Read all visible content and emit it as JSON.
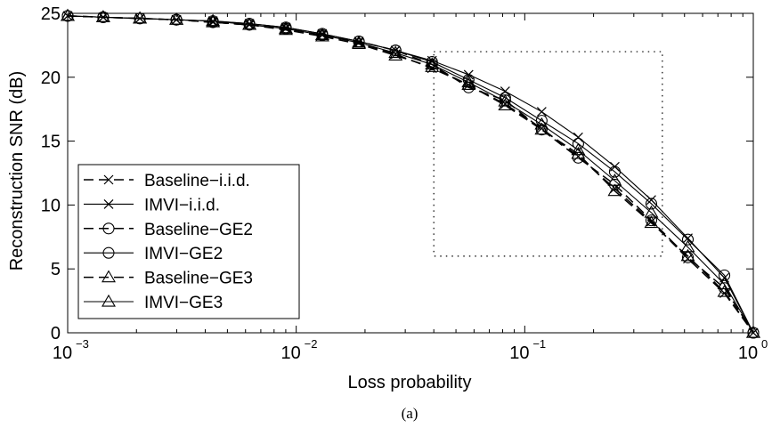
{
  "chart_data": {
    "type": "line",
    "xlabel": "Loss probability",
    "ylabel": "Reconstruction SNR (dB)",
    "caption": "(a)",
    "x_scale": "log",
    "xlim": [
      0.001,
      1
    ],
    "ylim": [
      0,
      25
    ],
    "x_ticks": [
      {
        "base": "10",
        "exp": "−3",
        "value": 0.001
      },
      {
        "base": "10",
        "exp": "−2",
        "value": 0.01
      },
      {
        "base": "10",
        "exp": "−1",
        "value": 0.1
      },
      {
        "base": "10",
        "exp": "0",
        "value": 1
      }
    ],
    "y_ticks": [
      "0",
      "5",
      "10",
      "15",
      "20",
      "25"
    ],
    "grid": false,
    "legend_position": "left",
    "zoom_box": {
      "x": [
        0.04,
        0.4
      ],
      "y": [
        6,
        22
      ]
    },
    "x": [
      0.001,
      0.00143,
      0.00207,
      0.00299,
      0.00432,
      0.00624,
      0.00901,
      0.013,
      0.0188,
      0.0272,
      0.0393,
      0.0568,
      0.0821,
      0.1186,
      0.1714,
      0.2477,
      0.3579,
      0.5172,
      0.7474,
      1.0
    ],
    "series": [
      {
        "name": "Baseline−i.i.d.",
        "style": "dashed",
        "marker": "x",
        "values": [
          24.8,
          24.7,
          24.6,
          24.5,
          24.3,
          24.1,
          23.8,
          23.3,
          22.7,
          21.8,
          20.7,
          19.4,
          17.9,
          16.0,
          13.8,
          11.3,
          8.7,
          5.8,
          3.1,
          0
        ]
      },
      {
        "name": "IMVI−i.i.d.",
        "style": "solid",
        "marker": "x",
        "values": [
          24.8,
          24.7,
          24.6,
          24.5,
          24.4,
          24.2,
          23.9,
          23.4,
          22.8,
          22.1,
          21.3,
          20.2,
          18.9,
          17.3,
          15.3,
          13.0,
          10.4,
          7.4,
          4.3,
          0
        ]
      },
      {
        "name": "Baseline−GE2",
        "style": "dashed",
        "marker": "circle",
        "values": [
          24.8,
          24.7,
          24.6,
          24.5,
          24.3,
          24.1,
          23.8,
          23.3,
          22.8,
          22.1,
          21.0,
          19.2,
          18.2,
          15.9,
          13.7,
          11.6,
          8.8,
          5.9,
          3.5,
          0
        ]
      },
      {
        "name": "IMVI−GE2",
        "style": "solid",
        "marker": "circle",
        "values": [
          24.8,
          24.7,
          24.6,
          24.5,
          24.4,
          24.2,
          23.9,
          23.4,
          22.8,
          22.1,
          21.2,
          19.8,
          18.4,
          16.6,
          14.8,
          12.6,
          10.1,
          7.3,
          4.5,
          0
        ]
      },
      {
        "name": "Baseline−GE3",
        "style": "dashed",
        "marker": "triangle",
        "values": [
          24.8,
          24.7,
          24.6,
          24.5,
          24.3,
          24.1,
          23.7,
          23.2,
          22.6,
          21.7,
          20.8,
          19.4,
          17.8,
          15.9,
          14.0,
          11.1,
          8.6,
          6.0,
          3.2,
          0
        ]
      },
      {
        "name": "IMVI−GE3",
        "style": "solid",
        "marker": "triangle",
        "values": [
          24.8,
          24.7,
          24.6,
          24.5,
          24.4,
          24.1,
          23.8,
          23.3,
          22.7,
          21.9,
          21.0,
          19.6,
          18.1,
          16.3,
          14.3,
          11.9,
          9.4,
          6.7,
          3.8,
          0
        ]
      }
    ]
  }
}
